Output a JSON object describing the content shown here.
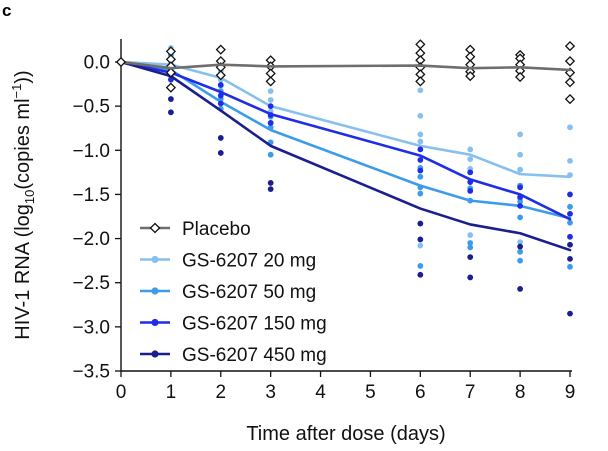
{
  "panel_label": "c",
  "chart_data": {
    "type": "line",
    "title": "",
    "xlabel": "Time after dose (days)",
    "ylabel_parts": {
      "prefix": "HIV-1 RNA (log",
      "sub": "10",
      "middle": "(copies ml",
      "sup": "−1",
      "suffix": "))"
    },
    "xlim": [
      0,
      9
    ],
    "ylim": [
      -3.5,
      0.2
    ],
    "x_ticks": [
      0,
      1,
      2,
      3,
      4,
      5,
      6,
      7,
      8,
      9
    ],
    "x_tick_labels": [
      "0",
      "1",
      "2",
      "3",
      "4",
      "5",
      "6",
      "7",
      "8",
      "9"
    ],
    "y_ticks": [
      0,
      -0.5,
      -1.0,
      -1.5,
      -2.0,
      -2.5,
      -3.0,
      -3.5
    ],
    "y_tick_labels": [
      "0.0",
      "−0.5",
      "−1.0",
      "−1.5",
      "−2.0",
      "−2.5",
      "−3.0",
      "−3.5"
    ],
    "legend_position": "lower-left",
    "series": [
      {
        "name": "Placebo",
        "color": "#6e6e6e",
        "marker": "open-diamond",
        "mean": {
          "x": [
            0,
            1,
            2,
            3,
            6,
            7,
            8,
            9
          ],
          "y": [
            0.0,
            -0.07,
            -0.03,
            -0.05,
            -0.04,
            -0.07,
            -0.06,
            -0.09
          ]
        },
        "points": [
          {
            "x": 1,
            "y": 0.12
          },
          {
            "x": 1,
            "y": 0.03
          },
          {
            "x": 1,
            "y": -0.05
          },
          {
            "x": 1,
            "y": -0.12
          },
          {
            "x": 1,
            "y": -0.29
          },
          {
            "x": 2,
            "y": 0.14
          },
          {
            "x": 2,
            "y": 0.01
          },
          {
            "x": 2,
            "y": -0.06
          },
          {
            "x": 2,
            "y": -0.15
          },
          {
            "x": 3,
            "y": 0.02
          },
          {
            "x": 3,
            "y": -0.05
          },
          {
            "x": 3,
            "y": -0.13
          },
          {
            "x": 3,
            "y": -0.22
          },
          {
            "x": 6,
            "y": 0.2
          },
          {
            "x": 6,
            "y": 0.1
          },
          {
            "x": 6,
            "y": 0.02
          },
          {
            "x": 6,
            "y": -0.06
          },
          {
            "x": 6,
            "y": -0.14
          },
          {
            "x": 6,
            "y": -0.22
          },
          {
            "x": 7,
            "y": 0.14
          },
          {
            "x": 7,
            "y": 0.06
          },
          {
            "x": 7,
            "y": -0.03
          },
          {
            "x": 7,
            "y": -0.11
          },
          {
            "x": 7,
            "y": -0.16
          },
          {
            "x": 8,
            "y": 0.08
          },
          {
            "x": 8,
            "y": 0.04
          },
          {
            "x": 8,
            "y": -0.03
          },
          {
            "x": 8,
            "y": -0.1
          },
          {
            "x": 8,
            "y": -0.17
          },
          {
            "x": 9,
            "y": 0.18
          },
          {
            "x": 9,
            "y": 0.01
          },
          {
            "x": 9,
            "y": -0.12
          },
          {
            "x": 9,
            "y": -0.23
          },
          {
            "x": 9,
            "y": -0.42
          }
        ]
      },
      {
        "name": "GS-6207 20 mg",
        "color": "#87c0ee",
        "marker": "filled-circle",
        "mean": {
          "x": [
            0,
            1,
            2,
            3,
            6,
            7,
            8,
            9
          ],
          "y": [
            0.0,
            -0.03,
            -0.18,
            -0.5,
            -0.95,
            -1.05,
            -1.27,
            -1.3
          ]
        },
        "points": [
          {
            "x": 1,
            "y": 0.16
          },
          {
            "x": 1,
            "y": -0.02
          },
          {
            "x": 1,
            "y": -0.12
          },
          {
            "x": 2,
            "y": -0.1
          },
          {
            "x": 2,
            "y": -0.2
          },
          {
            "x": 2,
            "y": -0.27
          },
          {
            "x": 3,
            "y": -0.33
          },
          {
            "x": 3,
            "y": -0.43
          },
          {
            "x": 3,
            "y": -0.56
          },
          {
            "x": 3,
            "y": -0.69
          },
          {
            "x": 6,
            "y": -0.32
          },
          {
            "x": 6,
            "y": -0.61
          },
          {
            "x": 6,
            "y": -0.82
          },
          {
            "x": 6,
            "y": -0.9
          },
          {
            "x": 6,
            "y": -2.08
          },
          {
            "x": 7,
            "y": -0.99
          },
          {
            "x": 7,
            "y": -1.1
          },
          {
            "x": 7,
            "y": -1.21
          },
          {
            "x": 7,
            "y": -1.96
          },
          {
            "x": 8,
            "y": -0.82
          },
          {
            "x": 8,
            "y": -1.05
          },
          {
            "x": 8,
            "y": -1.22
          },
          {
            "x": 8,
            "y": -1.55
          },
          {
            "x": 8,
            "y": -2.04
          },
          {
            "x": 9,
            "y": -0.74
          },
          {
            "x": 9,
            "y": -1.12
          },
          {
            "x": 9,
            "y": -1.28
          }
        ]
      },
      {
        "name": "GS-6207 50 mg",
        "color": "#3d9cea",
        "marker": "filled-circle",
        "mean": {
          "x": [
            0,
            1,
            2,
            3,
            6,
            7,
            8,
            9
          ],
          "y": [
            0.0,
            -0.09,
            -0.45,
            -0.77,
            -1.4,
            -1.57,
            -1.63,
            -1.77
          ]
        },
        "points": [
          {
            "x": 1,
            "y": 0.08
          },
          {
            "x": 1,
            "y": -0.06
          },
          {
            "x": 1,
            "y": -0.16
          },
          {
            "x": 2,
            "y": -0.33
          },
          {
            "x": 2,
            "y": -0.42
          },
          {
            "x": 2,
            "y": -0.53
          },
          {
            "x": 3,
            "y": -0.62
          },
          {
            "x": 3,
            "y": -0.74
          },
          {
            "x": 3,
            "y": -0.91
          },
          {
            "x": 3,
            "y": -1.05
          },
          {
            "x": 6,
            "y": -1.2
          },
          {
            "x": 6,
            "y": -1.3
          },
          {
            "x": 6,
            "y": -1.42
          },
          {
            "x": 6,
            "y": -1.49
          },
          {
            "x": 6,
            "y": -2.31
          },
          {
            "x": 7,
            "y": -1.43
          },
          {
            "x": 7,
            "y": -1.57
          },
          {
            "x": 7,
            "y": -2.05
          },
          {
            "x": 7,
            "y": -2.1
          },
          {
            "x": 8,
            "y": -1.4
          },
          {
            "x": 8,
            "y": -1.58
          },
          {
            "x": 8,
            "y": -1.76
          },
          {
            "x": 8,
            "y": -2.15
          },
          {
            "x": 8,
            "y": -2.25
          },
          {
            "x": 9,
            "y": -1.64
          },
          {
            "x": 9,
            "y": -1.82
          },
          {
            "x": 9,
            "y": -2.32
          }
        ]
      },
      {
        "name": "GS-6207 150 mg",
        "color": "#1f2ee6",
        "marker": "filled-circle",
        "mean": {
          "x": [
            0,
            1,
            2,
            3,
            6,
            7,
            8,
            9
          ],
          "y": [
            0.0,
            -0.12,
            -0.34,
            -0.59,
            -1.06,
            -1.33,
            -1.5,
            -1.78
          ]
        },
        "points": [
          {
            "x": 1,
            "y": -0.1
          },
          {
            "x": 1,
            "y": -0.2
          },
          {
            "x": 2,
            "y": -0.26
          },
          {
            "x": 2,
            "y": -0.38
          },
          {
            "x": 2,
            "y": -0.47
          },
          {
            "x": 3,
            "y": -0.5
          },
          {
            "x": 3,
            "y": -0.6
          },
          {
            "x": 3,
            "y": -0.69
          },
          {
            "x": 6,
            "y": -0.99
          },
          {
            "x": 6,
            "y": -1.11
          },
          {
            "x": 6,
            "y": -1.23
          },
          {
            "x": 7,
            "y": -1.25
          },
          {
            "x": 7,
            "y": -1.36
          },
          {
            "x": 7,
            "y": -1.46
          },
          {
            "x": 8,
            "y": -1.42
          },
          {
            "x": 8,
            "y": -1.53
          },
          {
            "x": 8,
            "y": -1.63
          },
          {
            "x": 9,
            "y": -1.5
          },
          {
            "x": 9,
            "y": -1.72
          },
          {
            "x": 9,
            "y": -1.98
          }
        ]
      },
      {
        "name": "GS-6207 450 mg",
        "color": "#1a1f8f",
        "marker": "filled-circle",
        "mean": {
          "x": [
            0,
            1,
            2,
            3,
            6,
            7,
            8,
            9
          ],
          "y": [
            0.0,
            -0.16,
            -0.55,
            -0.95,
            -1.66,
            -1.84,
            -1.94,
            -2.13
          ]
        },
        "points": [
          {
            "x": 1,
            "y": -0.42
          },
          {
            "x": 1,
            "y": -0.57
          },
          {
            "x": 2,
            "y": -0.86
          },
          {
            "x": 2,
            "y": -1.03
          },
          {
            "x": 3,
            "y": -1.37
          },
          {
            "x": 3,
            "y": -1.44
          },
          {
            "x": 6,
            "y": -1.83
          },
          {
            "x": 6,
            "y": -2.01
          },
          {
            "x": 6,
            "y": -2.41
          },
          {
            "x": 7,
            "y": -2.21
          },
          {
            "x": 7,
            "y": -2.44
          },
          {
            "x": 8,
            "y": -2.09
          },
          {
            "x": 8,
            "y": -2.57
          },
          {
            "x": 9,
            "y": -2.07
          },
          {
            "x": 9,
            "y": -2.23
          },
          {
            "x": 9,
            "y": -2.85
          }
        ]
      }
    ]
  }
}
